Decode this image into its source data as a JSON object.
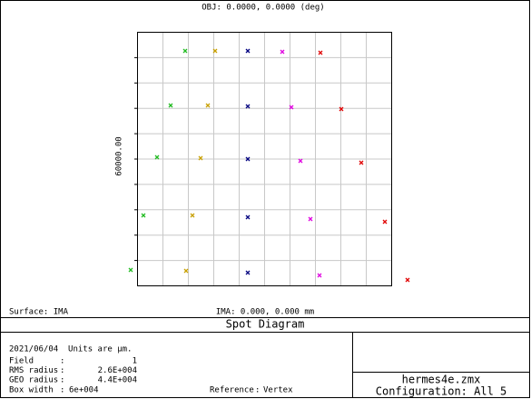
{
  "header": {
    "object": "OBJ: 0.0000, 0.0000 (deg)"
  },
  "plot": {
    "scale": "60000.00",
    "surface": "Surface: IMA",
    "image": "IMA: 0.000, 0.000 mm"
  },
  "title": "Spot Diagram",
  "info": {
    "date_units": "2021/06/04  Units are µm.",
    "rows": [
      {
        "label": "Field",
        "value": "1"
      },
      {
        "label": "RMS radius",
        "value": "2.6E+004"
      },
      {
        "label": "GEO radius",
        "value": "4.4E+004"
      },
      {
        "label": "Box width",
        "value": "6e+004"
      }
    ],
    "reference": {
      "label": "Reference",
      "value": "Vertex"
    }
  },
  "footer": {
    "file": "hermes4e.zmx",
    "configuration": "Configuration: All 5"
  }
}
